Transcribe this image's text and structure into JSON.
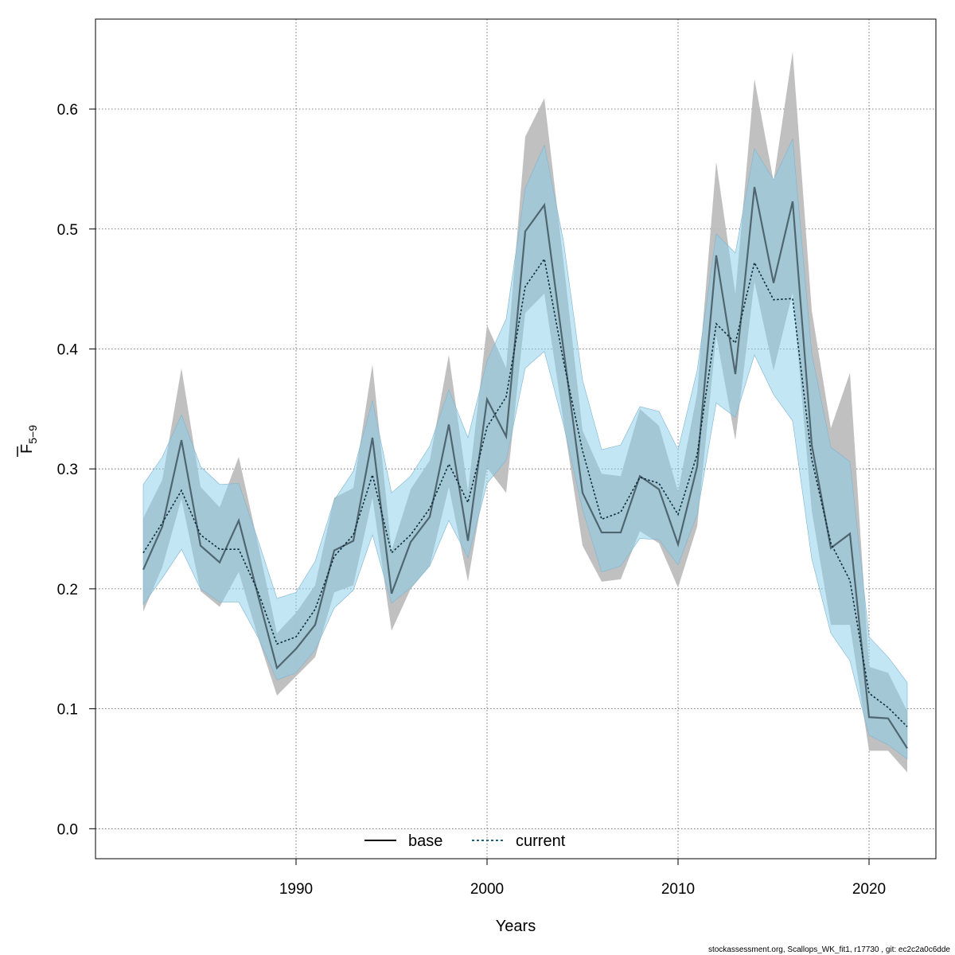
{
  "chart_data": {
    "type": "line",
    "xlabel": "Years",
    "ylabel": {
      "main": "F",
      "subscript": "5−9"
    },
    "xlim": [
      1979.5,
      2023.5
    ],
    "ylim": [
      -0.025,
      0.675
    ],
    "xticks": [
      1990,
      2000,
      2010,
      2020
    ],
    "yticks": [
      0.0,
      0.1,
      0.2,
      0.3,
      0.4,
      0.5,
      0.6
    ],
    "ytick_labels": [
      "0.0",
      "0.1",
      "0.2",
      "0.3",
      "0.4",
      "0.5",
      "0.6"
    ],
    "grid": true,
    "legend_position": "bottom-center",
    "x": [
      1982,
      1983,
      1984,
      1985,
      1986,
      1987,
      1988,
      1989,
      1990,
      1991,
      1992,
      1993,
      1994,
      1995,
      1996,
      1997,
      1998,
      1999,
      2000,
      2001,
      2002,
      2003,
      2004,
      2005,
      2006,
      2007,
      2008,
      2009,
      2010,
      2011,
      2012,
      2013,
      2014,
      2015,
      2016,
      2017,
      2018,
      2019,
      2020,
      2021,
      2022
    ],
    "series": [
      {
        "name": "base",
        "style": "solid",
        "color": "#000000",
        "band_color": "#bdbdbd",
        "values": [
          0.216,
          0.252,
          0.324,
          0.236,
          0.222,
          0.257,
          0.195,
          0.134,
          0.15,
          0.17,
          0.232,
          0.24,
          0.326,
          0.196,
          0.239,
          0.26,
          0.337,
          0.24,
          0.358,
          0.327,
          0.498,
          0.52,
          0.4,
          0.28,
          0.247,
          0.247,
          0.294,
          0.283,
          0.237,
          0.302,
          0.478,
          0.379,
          0.535,
          0.455,
          0.523,
          0.32,
          0.234,
          0.246,
          0.093,
          0.092,
          0.067
        ],
        "lower": [
          0.181,
          0.218,
          0.275,
          0.198,
          0.185,
          0.214,
          0.16,
          0.111,
          0.127,
          0.143,
          0.197,
          0.203,
          0.276,
          0.165,
          0.2,
          0.219,
          0.285,
          0.206,
          0.301,
          0.28,
          0.43,
          0.446,
          0.34,
          0.236,
          0.206,
          0.208,
          0.248,
          0.238,
          0.201,
          0.252,
          0.411,
          0.324,
          0.456,
          0.382,
          0.447,
          0.265,
          0.17,
          0.17,
          0.065,
          0.065,
          0.047
        ],
        "upper": [
          0.259,
          0.291,
          0.384,
          0.285,
          0.268,
          0.31,
          0.238,
          0.163,
          0.18,
          0.203,
          0.276,
          0.284,
          0.387,
          0.232,
          0.283,
          0.307,
          0.395,
          0.281,
          0.42,
          0.384,
          0.577,
          0.609,
          0.473,
          0.332,
          0.296,
          0.294,
          0.35,
          0.336,
          0.281,
          0.363,
          0.556,
          0.446,
          0.625,
          0.54,
          0.648,
          0.432,
          0.334,
          0.38,
          0.135,
          0.13,
          0.098
        ]
      },
      {
        "name": "current",
        "style": "dashed",
        "color": "#1f5f7f",
        "band_color": "#87ceeb",
        "values": [
          0.23,
          0.255,
          0.282,
          0.245,
          0.233,
          0.233,
          0.198,
          0.154,
          0.16,
          0.183,
          0.227,
          0.245,
          0.295,
          0.23,
          0.245,
          0.267,
          0.304,
          0.272,
          0.335,
          0.36,
          0.452,
          0.475,
          0.39,
          0.315,
          0.258,
          0.264,
          0.293,
          0.288,
          0.262,
          0.312,
          0.421,
          0.405,
          0.472,
          0.441,
          0.442,
          0.308,
          0.238,
          0.207,
          0.113,
          0.101,
          0.085
        ],
        "lower": [
          0.187,
          0.209,
          0.233,
          0.2,
          0.189,
          0.189,
          0.16,
          0.124,
          0.13,
          0.149,
          0.184,
          0.199,
          0.245,
          0.188,
          0.201,
          0.219,
          0.257,
          0.226,
          0.288,
          0.307,
          0.384,
          0.398,
          0.337,
          0.266,
          0.214,
          0.219,
          0.242,
          0.241,
          0.22,
          0.262,
          0.355,
          0.343,
          0.395,
          0.362,
          0.34,
          0.225,
          0.163,
          0.14,
          0.078,
          0.07,
          0.058
        ],
        "upper": [
          0.287,
          0.31,
          0.345,
          0.302,
          0.287,
          0.288,
          0.241,
          0.192,
          0.197,
          0.223,
          0.274,
          0.298,
          0.357,
          0.28,
          0.294,
          0.319,
          0.366,
          0.326,
          0.39,
          0.425,
          0.534,
          0.57,
          0.49,
          0.374,
          0.316,
          0.32,
          0.352,
          0.348,
          0.316,
          0.382,
          0.496,
          0.48,
          0.567,
          0.541,
          0.575,
          0.396,
          0.318,
          0.306,
          0.16,
          0.143,
          0.122
        ]
      }
    ]
  },
  "footer": "stockassessment.org, Scallops_WK_fit1, r17730 , git: ec2c2a0c6dde"
}
